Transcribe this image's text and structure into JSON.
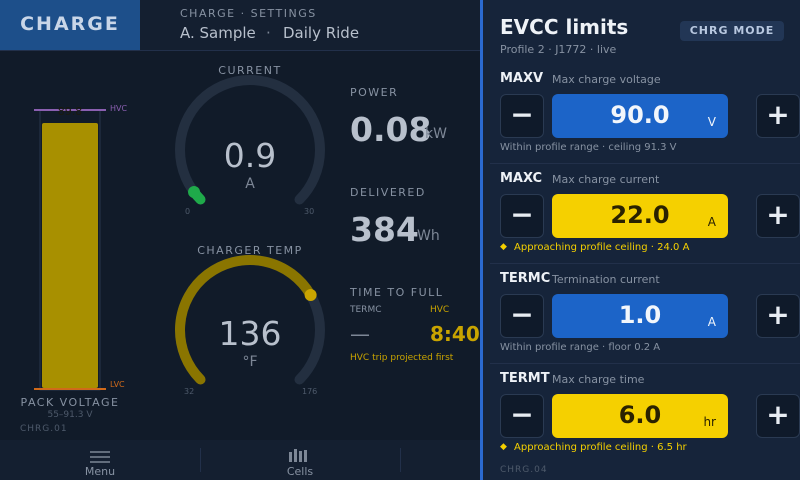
{
  "header": {
    "title": "CHARGE",
    "breadcrumb": "CHARGE · SETTINGS",
    "user": "A. Sample",
    "separator": "·",
    "mode": "Daily Ride"
  },
  "gauges": {
    "current": {
      "label": "CURRENT",
      "value": 0.9,
      "unit": "A",
      "min": 0,
      "max": 30
    },
    "temp": {
      "label": "CHARGER TEMP",
      "value": 136,
      "unit": "°F",
      "min": 32,
      "max": 176
    }
  },
  "pack": {
    "value": 89.8,
    "hvc": "HVC",
    "lvc": "LVC",
    "label": "PACK VOLTAGE",
    "range": "55–91.3 V",
    "id": "CHRG.01"
  },
  "stats": {
    "power": {
      "label": "POWER",
      "value": 0.08,
      "unit": "kW"
    },
    "delivered": {
      "label": "DELIVERED",
      "value": 384,
      "unit": "Wh"
    }
  },
  "ttf": {
    "label": "TIME TO FULL",
    "termc_label": "TERMC",
    "termc_value": "—",
    "hvc_label": "HVC",
    "hvc_value": "8:40",
    "note": "HVC trip projected first"
  },
  "nav": [
    "Menu",
    "Cells"
  ],
  "panel": {
    "title": "EVCC limits",
    "subtitle": "Profile 2 · J1772 · live",
    "button": "CHRG MODE",
    "footer": "CHRG.04",
    "rows": [
      {
        "key": "MAXV",
        "desc": "Max charge voltage",
        "value": "90.0",
        "unit": "V",
        "note": "Within profile range · ceiling 91.3 V",
        "status": "ok"
      },
      {
        "key": "MAXC",
        "desc": "Max charge current",
        "value": "22.0",
        "unit": "A",
        "note": "Approaching profile ceiling · 24.0 A",
        "status": "warn"
      },
      {
        "key": "TERMC",
        "desc": "Termination current",
        "value": "1.0",
        "unit": "A",
        "note": "Within profile range · floor 0.2 A",
        "status": "ok"
      },
      {
        "key": "TERMT",
        "desc": "Max charge time",
        "value": "6.0",
        "unit": "hr",
        "note": "Approaching profile ceiling · 6.5 hr",
        "status": "warn"
      }
    ]
  }
}
